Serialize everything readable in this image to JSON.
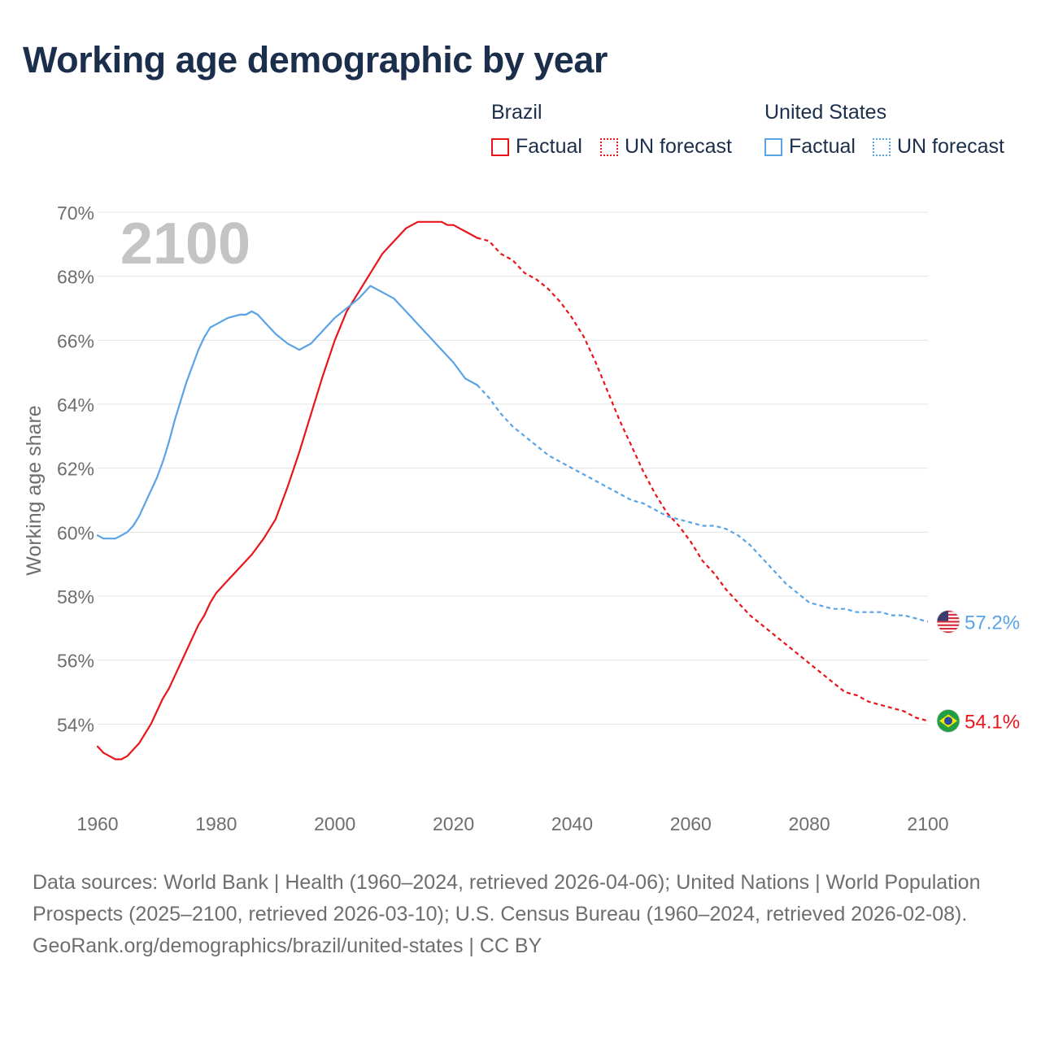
{
  "chart_data": {
    "type": "line",
    "title": "Working age demographic by year",
    "ylabel": "Working age share",
    "xlabel": "",
    "xlim": [
      1960,
      2100
    ],
    "ylim": [
      52,
      70
    ],
    "x_ticks": [
      1960,
      1980,
      2000,
      2020,
      2040,
      2060,
      2080,
      2100
    ],
    "y_ticks": [
      54,
      56,
      58,
      60,
      62,
      64,
      66,
      68,
      70
    ],
    "y_tick_labels": [
      "54%",
      "56%",
      "58%",
      "60%",
      "62%",
      "64%",
      "66%",
      "68%",
      "70%"
    ],
    "x_tick_labels": [
      "1960",
      "1980",
      "2000",
      "2020",
      "2040",
      "2060",
      "2080",
      "2100"
    ],
    "year_label": "2100",
    "grid": true,
    "legend_position": "top-right",
    "legend": {
      "groups": [
        {
          "name": "Brazil",
          "factual_label": "Factual",
          "forecast_label": "UN forecast"
        },
        {
          "name": "United States",
          "factual_label": "Factual",
          "forecast_label": "UN forecast"
        }
      ]
    },
    "series": [
      {
        "name": "Brazil",
        "color": "#e8151b",
        "end_label": "54.1%",
        "flag_icon": "brazil-flag-icon",
        "factual": {
          "x": [
            1960,
            1961,
            1962,
            1963,
            1964,
            1965,
            1966,
            1967,
            1968,
            1969,
            1970,
            1971,
            1972,
            1973,
            1974,
            1975,
            1976,
            1977,
            1978,
            1979,
            1980,
            1982,
            1984,
            1986,
            1988,
            1990,
            1992,
            1994,
            1996,
            1998,
            2000,
            2002,
            2004,
            2005,
            2006,
            2007,
            2008,
            2009,
            2010,
            2011,
            2012,
            2013,
            2014,
            2015,
            2016,
            2017,
            2018,
            2019,
            2020,
            2021,
            2022,
            2023,
            2024
          ],
          "values": [
            53.3,
            53.1,
            53.0,
            52.9,
            52.9,
            53.0,
            53.2,
            53.4,
            53.7,
            54.0,
            54.4,
            54.8,
            55.1,
            55.5,
            55.9,
            56.3,
            56.7,
            57.1,
            57.4,
            57.8,
            58.1,
            58.5,
            58.9,
            59.3,
            59.8,
            60.4,
            61.4,
            62.5,
            63.7,
            64.9,
            66.0,
            66.9,
            67.5,
            67.8,
            68.1,
            68.4,
            68.7,
            68.9,
            69.1,
            69.3,
            69.5,
            69.6,
            69.7,
            69.7,
            69.7,
            69.7,
            69.7,
            69.6,
            69.6,
            69.5,
            69.4,
            69.3,
            69.2
          ]
        },
        "forecast": {
          "x": [
            2024,
            2026,
            2028,
            2030,
            2032,
            2034,
            2036,
            2038,
            2040,
            2042,
            2044,
            2046,
            2048,
            2050,
            2052,
            2054,
            2056,
            2058,
            2060,
            2062,
            2064,
            2066,
            2068,
            2070,
            2072,
            2074,
            2076,
            2078,
            2080,
            2082,
            2084,
            2086,
            2088,
            2090,
            2092,
            2094,
            2096,
            2098,
            2100
          ],
          "values": [
            69.2,
            69.1,
            68.7,
            68.5,
            68.1,
            67.9,
            67.6,
            67.2,
            66.7,
            66.1,
            65.3,
            64.4,
            63.5,
            62.7,
            61.9,
            61.2,
            60.6,
            60.2,
            59.7,
            59.1,
            58.7,
            58.2,
            57.8,
            57.4,
            57.1,
            56.8,
            56.5,
            56.2,
            55.9,
            55.6,
            55.3,
            55.0,
            54.9,
            54.7,
            54.6,
            54.5,
            54.4,
            54.2,
            54.1
          ]
        }
      },
      {
        "name": "United States",
        "color": "#5aa3e6",
        "end_label": "57.2%",
        "flag_icon": "usa-flag-icon",
        "factual": {
          "x": [
            1960,
            1961,
            1962,
            1963,
            1964,
            1965,
            1966,
            1967,
            1968,
            1969,
            1970,
            1971,
            1972,
            1973,
            1974,
            1975,
            1976,
            1977,
            1978,
            1979,
            1980,
            1982,
            1984,
            1985,
            1986,
            1987,
            1988,
            1990,
            1992,
            1994,
            1996,
            1998,
            2000,
            2002,
            2004,
            2006,
            2008,
            2010,
            2012,
            2014,
            2016,
            2018,
            2020,
            2022,
            2024
          ],
          "values": [
            59.9,
            59.8,
            59.8,
            59.8,
            59.9,
            60.0,
            60.2,
            60.5,
            60.9,
            61.3,
            61.7,
            62.2,
            62.8,
            63.5,
            64.1,
            64.7,
            65.2,
            65.7,
            66.1,
            66.4,
            66.5,
            66.7,
            66.8,
            66.8,
            66.9,
            66.8,
            66.6,
            66.2,
            65.9,
            65.7,
            65.9,
            66.3,
            66.7,
            67.0,
            67.3,
            67.7,
            67.5,
            67.3,
            66.9,
            66.5,
            66.1,
            65.7,
            65.3,
            64.8,
            64.6
          ]
        },
        "forecast": {
          "x": [
            2024,
            2026,
            2028,
            2030,
            2032,
            2034,
            2036,
            2038,
            2040,
            2042,
            2044,
            2046,
            2048,
            2050,
            2052,
            2054,
            2056,
            2058,
            2060,
            2062,
            2064,
            2066,
            2068,
            2070,
            2072,
            2074,
            2076,
            2078,
            2080,
            2082,
            2084,
            2086,
            2088,
            2090,
            2092,
            2094,
            2096,
            2098,
            2100
          ],
          "values": [
            64.6,
            64.2,
            63.7,
            63.3,
            63.0,
            62.7,
            62.4,
            62.2,
            62.0,
            61.8,
            61.6,
            61.4,
            61.2,
            61.0,
            60.9,
            60.7,
            60.5,
            60.4,
            60.3,
            60.2,
            60.2,
            60.1,
            59.9,
            59.6,
            59.2,
            58.8,
            58.4,
            58.1,
            57.8,
            57.7,
            57.6,
            57.6,
            57.5,
            57.5,
            57.5,
            57.4,
            57.4,
            57.3,
            57.2
          ]
        }
      }
    ]
  },
  "footer": {
    "sources": "Data sources: World Bank | Health (1960–2024, retrieved 2026-04-06); United Nations | World Population Prospects (2025–2100, retrieved 2026-03-10); U.S. Census Bureau (1960–2024, retrieved 2026-02-08).",
    "credit": "GeoRank.org/demographics/brazil/united-states | CC BY"
  }
}
